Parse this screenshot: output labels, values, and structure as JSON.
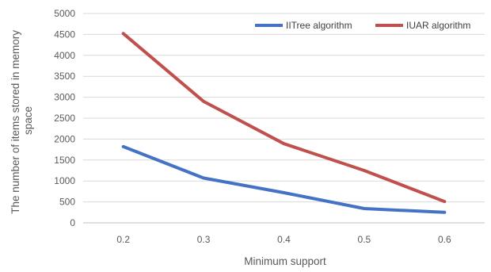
{
  "chart_data": {
    "type": "line",
    "categories": [
      "0.2",
      "0.3",
      "0.4",
      "0.5",
      "0.6"
    ],
    "series": [
      {
        "name": "IITree algorithm",
        "color": "#4472C4",
        "values": [
          1820,
          1070,
          720,
          340,
          250
        ]
      },
      {
        "name": "IUAR algorithm",
        "color": "#C0504D",
        "values": [
          4520,
          2900,
          1890,
          1250,
          510
        ]
      }
    ],
    "xlabel": "Minimum support",
    "ylabel_lines": [
      "The number of items stored in memory",
      "space"
    ],
    "ylim": [
      0,
      5000
    ],
    "yticks": [
      "0",
      "500",
      "1000",
      "1500",
      "2000",
      "2500",
      "3000",
      "3500",
      "4000",
      "4500",
      "5000"
    ],
    "grid": true,
    "legend_position": "top-right"
  }
}
